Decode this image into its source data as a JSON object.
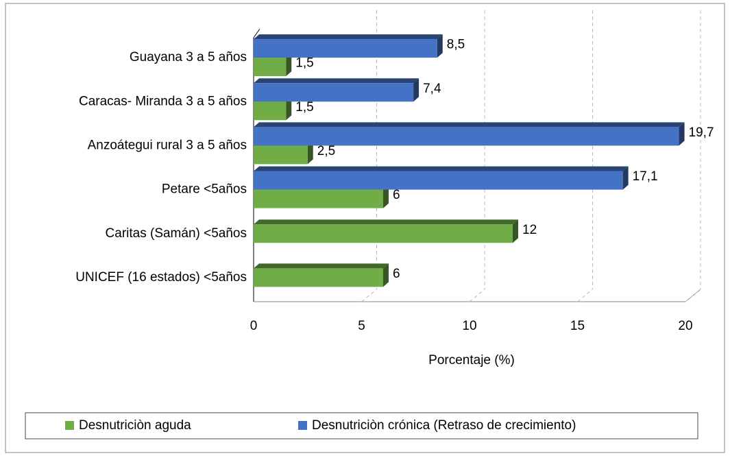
{
  "chart_data": {
    "type": "bar",
    "categories": [
      "Guayana 3 a 5 años",
      "Caracas- Miranda 3 a 5 años",
      "Anzoátegui rural 3 a 5 años",
      "Petare <5años",
      "Caritas (Samán) <5años",
      "UNICEF (16 estados) <5años"
    ],
    "series": [
      {
        "name": "Desnutriciòn aguda",
        "color": "#70ad47",
        "values": [
          1.5,
          1.5,
          2.5,
          6,
          12,
          6
        ],
        "value_labels": [
          "1,5",
          "1,5",
          "2,5",
          "6",
          "12",
          "6"
        ]
      },
      {
        "name": "Desnutriciòn crónica (Retraso de crecimiento)",
        "color": "#4472c4",
        "values": [
          8.5,
          7.4,
          19.7,
          17.1,
          null,
          null
        ],
        "value_labels": [
          "8,5",
          "7,4",
          "19,7",
          "17,1",
          null,
          null
        ]
      }
    ],
    "xlim": [
      0,
      20
    ],
    "xticks": [
      0,
      5,
      10,
      15,
      20
    ],
    "xlabel": "Porcentaje (%)",
    "grid": true,
    "legend": "bottom"
  }
}
